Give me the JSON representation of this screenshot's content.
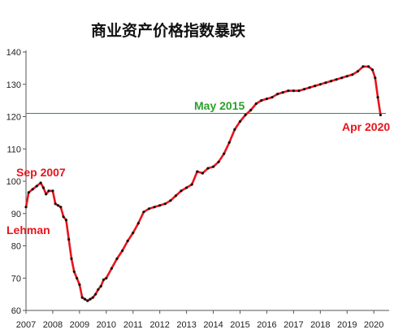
{
  "chart_data": {
    "type": "line",
    "title": "商业资产价格指数暴跌",
    "xlabel": "",
    "ylabel": "",
    "xlim": [
      2007.0,
      2020.45
    ],
    "ylim": [
      60,
      140
    ],
    "x_ticks": [
      "2007",
      "2008",
      "2009",
      "2010",
      "2011",
      "2012",
      "2013",
      "2014",
      "2015",
      "2016",
      "2017",
      "2018",
      "2019",
      "2020"
    ],
    "y_ticks": [
      "60",
      "70",
      "80",
      "90",
      "100",
      "110",
      "120",
      "130",
      "140"
    ],
    "grid": false,
    "legend": "none",
    "reference_line": {
      "y": 121,
      "color": "#2e8b57"
    },
    "series": [
      {
        "color": "#e8141b",
        "marker_color": "#111111",
        "x": [
          2007.0,
          2007.1,
          2007.25,
          2007.4,
          2007.55,
          2007.65,
          2007.75,
          2007.85,
          2008.0,
          2008.1,
          2008.2,
          2008.3,
          2008.4,
          2008.5,
          2008.6,
          2008.7,
          2008.8,
          2008.9,
          2009.0,
          2009.1,
          2009.2,
          2009.3,
          2009.4,
          2009.5,
          2009.6,
          2009.7,
          2009.8,
          2009.9,
          2010.0,
          2010.2,
          2010.4,
          2010.6,
          2010.8,
          2011.0,
          2011.2,
          2011.4,
          2011.6,
          2011.8,
          2012.0,
          2012.2,
          2012.4,
          2012.6,
          2012.8,
          2013.0,
          2013.2,
          2013.4,
          2013.6,
          2013.8,
          2014.0,
          2014.2,
          2014.4,
          2014.6,
          2014.8,
          2015.0,
          2015.2,
          2015.4,
          2015.6,
          2015.8,
          2016.0,
          2016.2,
          2016.4,
          2016.6,
          2016.8,
          2017.0,
          2017.2,
          2017.4,
          2017.6,
          2017.8,
          2018.0,
          2018.2,
          2018.4,
          2018.6,
          2018.8,
          2019.0,
          2019.2,
          2019.4,
          2019.6,
          2019.8,
          2019.95,
          2020.05,
          2020.15,
          2020.25
        ],
        "y": [
          92,
          96.5,
          97.5,
          98.5,
          99.5,
          98,
          96,
          97,
          97,
          93,
          92.5,
          92,
          89,
          88,
          82,
          76,
          72,
          70,
          68,
          64,
          63.5,
          63,
          63.5,
          64,
          65,
          66.5,
          67.5,
          69.5,
          70,
          73,
          76,
          78.5,
          81.5,
          84,
          87,
          90.5,
          91.5,
          92,
          92.5,
          93,
          94,
          95.5,
          97,
          98,
          99,
          103,
          102.5,
          104,
          104.5,
          106,
          108.5,
          112,
          116,
          118.5,
          120.5,
          122,
          124,
          125,
          125.5,
          126,
          127,
          127.5,
          128,
          128,
          128,
          128.5,
          129,
          129.5,
          130,
          130.5,
          131,
          131.5,
          132,
          132.5,
          133,
          134,
          135.5,
          135.5,
          134.5,
          132,
          126,
          120.5
        ]
      }
    ],
    "annotations": [
      {
        "text": "Sep 2007",
        "color": "#e8141b"
      },
      {
        "text": "Lehman",
        "color": "#e8141b"
      },
      {
        "text": "May 2015",
        "color": "#2ca02c"
      },
      {
        "text": "Apr 2020",
        "color": "#e8141b"
      }
    ]
  }
}
